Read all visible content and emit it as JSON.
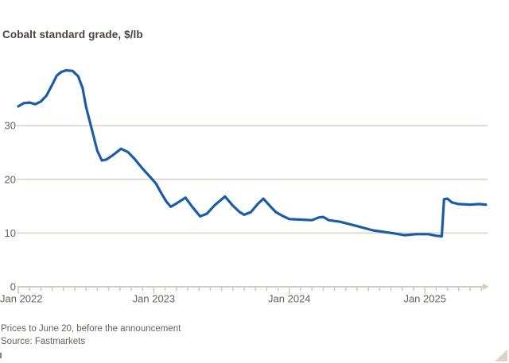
{
  "title": "Cobalt standard grade, $/lb",
  "footnote": "Prices to June 20, before the announcement",
  "source": "Source: Fastmarkets",
  "colors": {
    "line": "#1a5ca8",
    "grid": "#e3d9cf",
    "axis": "#d6cabf",
    "tick_text": "#66605c",
    "title_text": "#4a443f"
  },
  "chart_data": {
    "type": "line",
    "title": "Cobalt standard grade, $/lb",
    "ylabel": "$/lb",
    "xlabel": "",
    "grid": "horizontal",
    "legend": "none",
    "axis_arrow": true,
    "ylim": [
      0,
      45
    ],
    "y_gridlines": [
      10,
      20,
      30
    ],
    "y_axis_value": 0,
    "y_tick_labels": [
      "0",
      "10",
      "20",
      "30"
    ],
    "x_range_months": [
      0,
      41.5
    ],
    "x_minor_tick_every_months": 1,
    "x_major_tick_months": [
      0,
      12,
      24,
      36
    ],
    "x_tick_labels": [
      "Jan 2022",
      "Jan 2023",
      "Jan 2024",
      "Jan 2025"
    ],
    "series": [
      {
        "name": "Cobalt standard grade ($/lb)",
        "x_unit": "months since Jan 2022",
        "points": [
          [
            0,
            33.6
          ],
          [
            0.5,
            34.2
          ],
          [
            1.0,
            34.3
          ],
          [
            1.5,
            34.0
          ],
          [
            2.0,
            34.5
          ],
          [
            2.5,
            35.6
          ],
          [
            3.0,
            37.6
          ],
          [
            3.4,
            39.3
          ],
          [
            3.8,
            40.0
          ],
          [
            4.2,
            40.3
          ],
          [
            4.8,
            40.2
          ],
          [
            5.3,
            39.2
          ],
          [
            5.7,
            37.0
          ],
          [
            6.0,
            33.5
          ],
          [
            6.3,
            31.0
          ],
          [
            6.7,
            27.8
          ],
          [
            7.0,
            25.3
          ],
          [
            7.4,
            23.5
          ],
          [
            7.8,
            23.7
          ],
          [
            8.3,
            24.4
          ],
          [
            9.1,
            25.7
          ],
          [
            9.7,
            25.1
          ],
          [
            10.3,
            23.8
          ],
          [
            11.0,
            22.0
          ],
          [
            11.7,
            20.4
          ],
          [
            12.2,
            19.2
          ],
          [
            12.7,
            17.3
          ],
          [
            13.1,
            15.9
          ],
          [
            13.5,
            14.9
          ],
          [
            14.0,
            15.5
          ],
          [
            14.8,
            16.6
          ],
          [
            15.4,
            14.9
          ],
          [
            16.1,
            13.1
          ],
          [
            16.7,
            13.6
          ],
          [
            17.4,
            15.2
          ],
          [
            18.3,
            16.8
          ],
          [
            19.0,
            15.1
          ],
          [
            19.6,
            13.9
          ],
          [
            20.0,
            13.4
          ],
          [
            20.6,
            13.9
          ],
          [
            21.2,
            15.4
          ],
          [
            21.7,
            16.4
          ],
          [
            22.3,
            15.0
          ],
          [
            22.8,
            13.9
          ],
          [
            23.4,
            13.2
          ],
          [
            24.0,
            12.6
          ],
          [
            25.0,
            12.5
          ],
          [
            26.0,
            12.4
          ],
          [
            26.6,
            12.9
          ],
          [
            27.0,
            13.0
          ],
          [
            27.5,
            12.4
          ],
          [
            28.5,
            12.1
          ],
          [
            29.8,
            11.4
          ],
          [
            31.4,
            10.5
          ],
          [
            33.1,
            10.0
          ],
          [
            34.2,
            9.6
          ],
          [
            35.2,
            9.8
          ],
          [
            36.3,
            9.8
          ],
          [
            37.0,
            9.5
          ],
          [
            37.5,
            9.4
          ],
          [
            37.7,
            16.3
          ],
          [
            38.0,
            16.4
          ],
          [
            38.4,
            15.7
          ],
          [
            39.0,
            15.4
          ],
          [
            40.0,
            15.3
          ],
          [
            40.8,
            15.4
          ],
          [
            41.4,
            15.3
          ]
        ]
      }
    ]
  }
}
